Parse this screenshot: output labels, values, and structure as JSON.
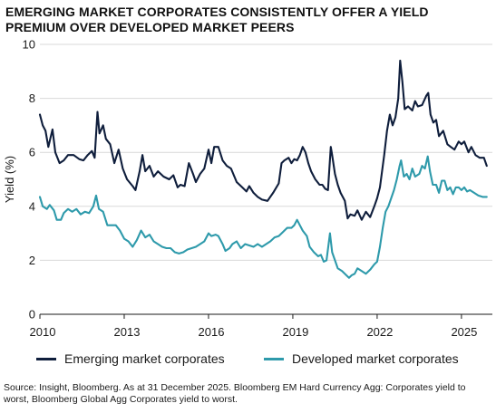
{
  "chart_data": {
    "type": "line",
    "title": "EMERGING MARKET CORPORATES CONSISTENTLY OFFER A YIELD PREMIUM OVER DEVELOPED MARKET PEERS",
    "xlabel": "",
    "ylabel": "Yield (%)",
    "xlim": [
      2010,
      2026.1
    ],
    "ylim": [
      0,
      10
    ],
    "x_ticks": [
      "2010",
      "2013",
      "2016",
      "2019",
      "2022",
      "2025"
    ],
    "y_ticks": [
      "0",
      "2",
      "4",
      "6",
      "8",
      "10"
    ],
    "grid": "horizontal",
    "legend_position": "bottom",
    "colors": {
      "emerging": "#0f1e3c",
      "developed": "#2e9aab"
    },
    "series": [
      {
        "name": "Emerging market corporates",
        "color": "#0f1e3c",
        "points": [
          [
            2010.0,
            7.4
          ],
          [
            2010.1,
            7.0
          ],
          [
            2010.2,
            6.8
          ],
          [
            2010.3,
            6.2
          ],
          [
            2010.45,
            6.85
          ],
          [
            2010.55,
            6.0
          ],
          [
            2010.7,
            5.6
          ],
          [
            2010.85,
            5.7
          ],
          [
            2011.0,
            5.9
          ],
          [
            2011.2,
            5.9
          ],
          [
            2011.4,
            5.75
          ],
          [
            2011.55,
            5.7
          ],
          [
            2011.7,
            5.9
          ],
          [
            2011.85,
            6.05
          ],
          [
            2011.95,
            5.8
          ],
          [
            2012.05,
            7.5
          ],
          [
            2012.12,
            6.7
          ],
          [
            2012.25,
            7.0
          ],
          [
            2012.35,
            6.5
          ],
          [
            2012.5,
            6.3
          ],
          [
            2012.65,
            5.6
          ],
          [
            2012.8,
            6.1
          ],
          [
            2012.95,
            5.4
          ],
          [
            2013.1,
            5.0
          ],
          [
            2013.3,
            4.75
          ],
          [
            2013.4,
            4.6
          ],
          [
            2013.55,
            5.3
          ],
          [
            2013.65,
            5.9
          ],
          [
            2013.75,
            5.3
          ],
          [
            2013.9,
            5.5
          ],
          [
            2014.05,
            5.1
          ],
          [
            2014.2,
            5.3
          ],
          [
            2014.4,
            5.1
          ],
          [
            2014.6,
            5.0
          ],
          [
            2014.75,
            5.15
          ],
          [
            2014.9,
            4.7
          ],
          [
            2015.0,
            4.8
          ],
          [
            2015.15,
            4.75
          ],
          [
            2015.3,
            5.6
          ],
          [
            2015.45,
            5.2
          ],
          [
            2015.55,
            4.9
          ],
          [
            2015.7,
            5.2
          ],
          [
            2015.85,
            5.4
          ],
          [
            2016.0,
            6.1
          ],
          [
            2016.1,
            5.6
          ],
          [
            2016.2,
            6.2
          ],
          [
            2016.35,
            6.2
          ],
          [
            2016.5,
            5.7
          ],
          [
            2016.65,
            5.5
          ],
          [
            2016.8,
            5.4
          ],
          [
            2017.0,
            4.9
          ],
          [
            2017.2,
            4.7
          ],
          [
            2017.35,
            4.55
          ],
          [
            2017.45,
            4.75
          ],
          [
            2017.6,
            4.5
          ],
          [
            2017.75,
            4.35
          ],
          [
            2017.9,
            4.25
          ],
          [
            2018.1,
            4.2
          ],
          [
            2018.3,
            4.5
          ],
          [
            2018.5,
            4.85
          ],
          [
            2018.6,
            5.6
          ],
          [
            2018.7,
            5.7
          ],
          [
            2018.85,
            5.8
          ],
          [
            2018.95,
            5.6
          ],
          [
            2019.05,
            5.75
          ],
          [
            2019.15,
            5.7
          ],
          [
            2019.25,
            5.9
          ],
          [
            2019.35,
            6.2
          ],
          [
            2019.45,
            6.0
          ],
          [
            2019.55,
            5.6
          ],
          [
            2019.65,
            5.3
          ],
          [
            2019.8,
            5.0
          ],
          [
            2019.95,
            4.8
          ],
          [
            2020.05,
            4.8
          ],
          [
            2020.15,
            4.65
          ],
          [
            2020.25,
            4.6
          ],
          [
            2020.35,
            6.2
          ],
          [
            2020.4,
            5.9
          ],
          [
            2020.5,
            5.2
          ],
          [
            2020.6,
            4.8
          ],
          [
            2020.7,
            4.5
          ],
          [
            2020.85,
            4.2
          ],
          [
            2020.95,
            3.55
          ],
          [
            2021.05,
            3.7
          ],
          [
            2021.2,
            3.65
          ],
          [
            2021.3,
            3.85
          ],
          [
            2021.45,
            3.5
          ],
          [
            2021.6,
            3.8
          ],
          [
            2021.75,
            3.6
          ],
          [
            2021.9,
            4.0
          ],
          [
            2022.0,
            4.3
          ],
          [
            2022.1,
            4.7
          ],
          [
            2022.25,
            5.9
          ],
          [
            2022.35,
            6.8
          ],
          [
            2022.45,
            7.4
          ],
          [
            2022.55,
            7.0
          ],
          [
            2022.65,
            7.3
          ],
          [
            2022.75,
            8.0
          ],
          [
            2022.82,
            9.4
          ],
          [
            2022.9,
            8.6
          ],
          [
            2022.98,
            7.6
          ],
          [
            2023.1,
            7.7
          ],
          [
            2023.25,
            7.55
          ],
          [
            2023.35,
            7.9
          ],
          [
            2023.45,
            7.7
          ],
          [
            2023.6,
            7.75
          ],
          [
            2023.75,
            8.1
          ],
          [
            2023.82,
            8.2
          ],
          [
            2023.9,
            7.4
          ],
          [
            2024.0,
            7.1
          ],
          [
            2024.1,
            7.2
          ],
          [
            2024.2,
            6.6
          ],
          [
            2024.35,
            6.8
          ],
          [
            2024.5,
            6.3
          ],
          [
            2024.62,
            6.2
          ],
          [
            2024.75,
            6.1
          ],
          [
            2024.9,
            6.4
          ],
          [
            2025.0,
            6.3
          ],
          [
            2025.1,
            6.4
          ],
          [
            2025.25,
            6.0
          ],
          [
            2025.35,
            6.2
          ],
          [
            2025.5,
            5.9
          ],
          [
            2025.65,
            5.8
          ],
          [
            2025.8,
            5.8
          ],
          [
            2025.9,
            5.5
          ]
        ]
      },
      {
        "name": "Developed market corporates",
        "color": "#2e9aab",
        "points": [
          [
            2010.0,
            4.35
          ],
          [
            2010.1,
            4.0
          ],
          [
            2010.25,
            3.9
          ],
          [
            2010.35,
            4.05
          ],
          [
            2010.5,
            3.85
          ],
          [
            2010.6,
            3.5
          ],
          [
            2010.75,
            3.5
          ],
          [
            2010.85,
            3.75
          ],
          [
            2011.0,
            3.9
          ],
          [
            2011.15,
            3.8
          ],
          [
            2011.3,
            3.9
          ],
          [
            2011.45,
            3.7
          ],
          [
            2011.6,
            3.8
          ],
          [
            2011.75,
            3.75
          ],
          [
            2011.9,
            4.0
          ],
          [
            2012.0,
            4.4
          ],
          [
            2012.1,
            3.9
          ],
          [
            2012.25,
            3.8
          ],
          [
            2012.4,
            3.3
          ],
          [
            2012.55,
            3.3
          ],
          [
            2012.7,
            3.3
          ],
          [
            2012.85,
            3.1
          ],
          [
            2013.0,
            2.8
          ],
          [
            2013.15,
            2.7
          ],
          [
            2013.3,
            2.5
          ],
          [
            2013.45,
            2.75
          ],
          [
            2013.6,
            3.1
          ],
          [
            2013.75,
            2.85
          ],
          [
            2013.9,
            2.95
          ],
          [
            2014.05,
            2.7
          ],
          [
            2014.2,
            2.6
          ],
          [
            2014.35,
            2.5
          ],
          [
            2014.5,
            2.45
          ],
          [
            2014.65,
            2.45
          ],
          [
            2014.8,
            2.3
          ],
          [
            2014.95,
            2.25
          ],
          [
            2015.1,
            2.3
          ],
          [
            2015.25,
            2.4
          ],
          [
            2015.4,
            2.45
          ],
          [
            2015.55,
            2.5
          ],
          [
            2015.7,
            2.6
          ],
          [
            2015.85,
            2.7
          ],
          [
            2016.0,
            3.0
          ],
          [
            2016.1,
            2.9
          ],
          [
            2016.25,
            2.95
          ],
          [
            2016.35,
            2.9
          ],
          [
            2016.5,
            2.6
          ],
          [
            2016.6,
            2.35
          ],
          [
            2016.75,
            2.45
          ],
          [
            2016.85,
            2.6
          ],
          [
            2017.0,
            2.7
          ],
          [
            2017.15,
            2.45
          ],
          [
            2017.3,
            2.6
          ],
          [
            2017.45,
            2.55
          ],
          [
            2017.6,
            2.5
          ],
          [
            2017.75,
            2.6
          ],
          [
            2017.9,
            2.5
          ],
          [
            2018.05,
            2.6
          ],
          [
            2018.2,
            2.7
          ],
          [
            2018.35,
            2.85
          ],
          [
            2018.5,
            2.9
          ],
          [
            2018.65,
            3.05
          ],
          [
            2018.8,
            3.2
          ],
          [
            2018.95,
            3.2
          ],
          [
            2019.05,
            3.3
          ],
          [
            2019.15,
            3.5
          ],
          [
            2019.25,
            3.3
          ],
          [
            2019.35,
            3.1
          ],
          [
            2019.5,
            2.9
          ],
          [
            2019.6,
            2.5
          ],
          [
            2019.75,
            2.3
          ],
          [
            2019.9,
            2.15
          ],
          [
            2020.0,
            2.2
          ],
          [
            2020.1,
            1.95
          ],
          [
            2020.2,
            2.0
          ],
          [
            2020.32,
            3.0
          ],
          [
            2020.4,
            2.3
          ],
          [
            2020.5,
            2.0
          ],
          [
            2020.6,
            1.7
          ],
          [
            2020.75,
            1.6
          ],
          [
            2020.9,
            1.45
          ],
          [
            2021.0,
            1.35
          ],
          [
            2021.1,
            1.45
          ],
          [
            2021.2,
            1.5
          ],
          [
            2021.3,
            1.7
          ],
          [
            2021.45,
            1.6
          ],
          [
            2021.6,
            1.5
          ],
          [
            2021.75,
            1.65
          ],
          [
            2021.9,
            1.85
          ],
          [
            2022.0,
            1.95
          ],
          [
            2022.1,
            2.5
          ],
          [
            2022.2,
            3.2
          ],
          [
            2022.3,
            3.8
          ],
          [
            2022.4,
            4.0
          ],
          [
            2022.5,
            4.3
          ],
          [
            2022.6,
            4.6
          ],
          [
            2022.7,
            5.0
          ],
          [
            2022.8,
            5.5
          ],
          [
            2022.85,
            5.7
          ],
          [
            2022.95,
            5.1
          ],
          [
            2023.05,
            5.2
          ],
          [
            2023.15,
            5.0
          ],
          [
            2023.25,
            5.4
          ],
          [
            2023.35,
            5.1
          ],
          [
            2023.5,
            5.2
          ],
          [
            2023.6,
            5.5
          ],
          [
            2023.7,
            5.4
          ],
          [
            2023.8,
            5.85
          ],
          [
            2023.88,
            5.3
          ],
          [
            2023.98,
            4.8
          ],
          [
            2024.1,
            4.8
          ],
          [
            2024.2,
            4.5
          ],
          [
            2024.3,
            4.95
          ],
          [
            2024.4,
            4.95
          ],
          [
            2024.5,
            4.6
          ],
          [
            2024.6,
            4.7
          ],
          [
            2024.7,
            4.45
          ],
          [
            2024.8,
            4.7
          ],
          [
            2024.9,
            4.7
          ],
          [
            2025.0,
            4.6
          ],
          [
            2025.1,
            4.7
          ],
          [
            2025.2,
            4.55
          ],
          [
            2025.3,
            4.6
          ],
          [
            2025.45,
            4.5
          ],
          [
            2025.6,
            4.4
          ],
          [
            2025.75,
            4.35
          ],
          [
            2025.9,
            4.35
          ]
        ]
      }
    ]
  },
  "source": "Source: Insight, Bloomberg. As at 31 December 2025. Bloomberg EM Hard Currency Agg: Corporates yield to worst, Bloomberg Global Agg Corporates yield to worst."
}
